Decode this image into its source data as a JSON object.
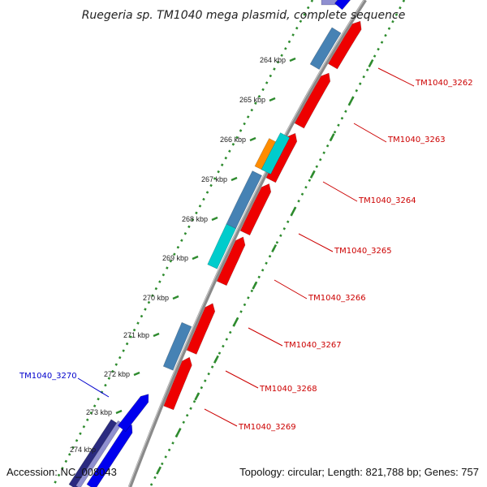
{
  "title": "Ruegeria sp. TM1040 mega plasmid, complete sequence",
  "footer": {
    "accession": "Accession: NC_008043",
    "summary": "Topology: circular; Length: 821,788 bp; Genes: 757"
  },
  "scale_labels": [
    "264 kbp",
    "265 kbp",
    "266 kbp",
    "267 kbp",
    "268 kbp",
    "269 kbp",
    "270 kbp",
    "271 kbp",
    "272 kbp",
    "273 kbp",
    "274 kbp"
  ],
  "colors": {
    "backbone": "#8a8a8a",
    "red_gene": "#ee0000",
    "steel_gene": "#4682b4",
    "orange_gene": "#ff8c00",
    "cyan_gene": "#00cccc",
    "blue_gene": "#0000ee",
    "navy_gene": "#2a2a80",
    "slate_gene": "#8f8fd0",
    "ruler_green": "#2e8b2e",
    "label_red": "#cc0000",
    "label_blue": "#0000cc"
  },
  "gene_labels": [
    {
      "name": "TM1040_3262",
      "color": "label_red"
    },
    {
      "name": "TM1040_3263",
      "color": "label_red"
    },
    {
      "name": "TM1040_3264",
      "color": "label_red"
    },
    {
      "name": "TM1040_3265",
      "color": "label_red"
    },
    {
      "name": "TM1040_3266",
      "color": "label_red"
    },
    {
      "name": "TM1040_3267",
      "color": "label_red"
    },
    {
      "name": "TM1040_3268",
      "color": "label_red"
    },
    {
      "name": "TM1040_3269",
      "color": "label_red"
    },
    {
      "name": "TM1040_3270",
      "color": "label_blue"
    }
  ]
}
